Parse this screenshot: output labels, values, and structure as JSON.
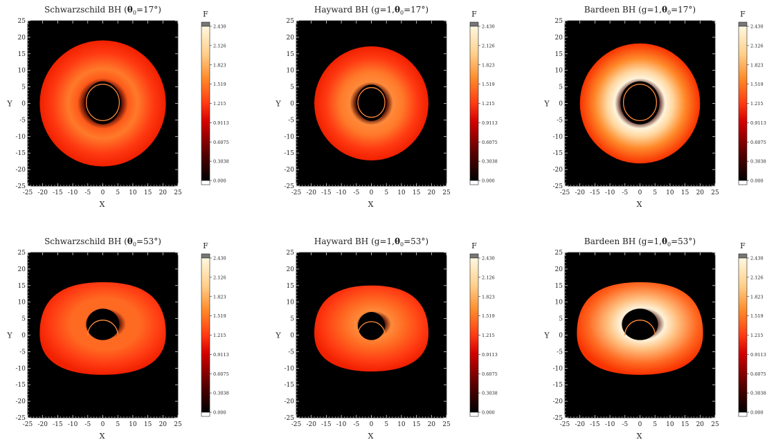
{
  "colorbar": {
    "label": "F",
    "ticks": [
      "2.430",
      "2.126",
      "1.823",
      "1.519",
      "1.215",
      "0.9113",
      "0.6075",
      "0.3038",
      "0.000"
    ]
  },
  "axes": {
    "xlabel": "X",
    "ylabel": "Y",
    "xticks": [
      "-25",
      "-20",
      "-15",
      "-10",
      "-5",
      "0",
      "5",
      "10",
      "15",
      "20",
      "25"
    ],
    "yticks": [
      "25",
      "20",
      "15",
      "10",
      "5",
      "0",
      "-5",
      "-10",
      "-15",
      "-20",
      "-25"
    ]
  },
  "panels": [
    {
      "title_pre": "Schwarzschild BH (",
      "title_post": "=17°)"
    },
    {
      "title_pre": "Hayward BH (g=1,",
      "title_post": "=17°)"
    },
    {
      "title_pre": "Bardeen BH (g=1,",
      "title_post": "=17°)"
    },
    {
      "title_pre": "Schwarzschild BH (",
      "title_post": "=53°)"
    },
    {
      "title_pre": "Hayward BH (g=1,",
      "title_post": "=53°)"
    },
    {
      "title_pre": "Bardeen BH (g=1,",
      "title_post": "=53°)"
    }
  ],
  "chart_data": [
    {
      "type": "heatmap",
      "title": "Schwarzschild BH (θ0=17°)",
      "xlabel": "X",
      "ylabel": "Y",
      "xlim": [
        -25,
        25
      ],
      "ylim": [
        -25,
        25
      ],
      "colorbar_label": "F",
      "clim": [
        0,
        2.43
      ],
      "disk": {
        "outer_radius": 21,
        "cx": -2,
        "cy": 0.5,
        "inner_radius_x": 6,
        "inner_radius_y": 6.5,
        "ring_radius": 5.5,
        "peak_flux": 1.25
      }
    },
    {
      "type": "heatmap",
      "title": "Hayward BH (g=1,θ0=17°)",
      "xlabel": "X",
      "ylabel": "Y",
      "xlim": [
        -25,
        25
      ],
      "ylim": [
        -25,
        25
      ],
      "colorbar_label": "F",
      "clim": [
        0,
        2.43
      ],
      "disk": {
        "outer_radius": 19,
        "cx": -0.5,
        "cy": 0.5,
        "inner_radius_x": 5,
        "inner_radius_y": 5.5,
        "ring_radius": 4.5,
        "peak_flux": 1.5
      }
    },
    {
      "type": "heatmap",
      "title": "Bardeen BH (g=1,θ0=17°)",
      "xlabel": "X",
      "ylabel": "Y",
      "xlim": [
        -25,
        25
      ],
      "ylim": [
        -25,
        25
      ],
      "colorbar_label": "F",
      "clim": [
        0,
        2.43
      ],
      "disk": {
        "outer_radius": 20,
        "cx": -0.5,
        "cy": 0.5,
        "inner_radius_x": 6.5,
        "inner_radius_y": 6.5,
        "ring_radius": 5.5,
        "peak_flux": 2.4
      }
    },
    {
      "type": "heatmap",
      "title": "Schwarzschild BH (θ0=53°)",
      "xlabel": "X",
      "ylabel": "Y",
      "xlim": [
        -25,
        25
      ],
      "ylim": [
        -25,
        25
      ],
      "colorbar_label": "F",
      "clim": [
        0,
        2.43
      ],
      "disk": {
        "outer_radius_x": 21,
        "outer_top": 16,
        "outer_bottom": -12,
        "inner_radius_x": 5.5,
        "inner_top": 8,
        "inner_bottom": -1.5,
        "ring_radius": 5,
        "peak_flux": 1.3
      }
    },
    {
      "type": "heatmap",
      "title": "Hayward BH (g=1,θ0=53°)",
      "xlabel": "X",
      "ylabel": "Y",
      "xlim": [
        -25,
        25
      ],
      "ylim": [
        -25,
        25
      ],
      "colorbar_label": "F",
      "clim": [
        0,
        2.43
      ],
      "disk": {
        "outer_radius_x": 19,
        "outer_top": 15,
        "outer_bottom": -11,
        "inner_radius_x": 4.5,
        "inner_top": 7,
        "inner_bottom": -1.5,
        "ring_radius": 4.5,
        "peak_flux": 1.6
      }
    },
    {
      "type": "heatmap",
      "title": "Bardeen BH (g=1,θ0=53°)",
      "xlabel": "X",
      "ylabel": "Y",
      "xlim": [
        -25,
        25
      ],
      "ylim": [
        -25,
        25
      ],
      "colorbar_label": "F",
      "clim": [
        0,
        2.43
      ],
      "disk": {
        "outer_radius_x": 21,
        "outer_top": 16,
        "outer_bottom": -12,
        "inner_radius_x": 6,
        "inner_top": 8,
        "inner_bottom": -1.5,
        "ring_radius": 5,
        "peak_flux": 2.4
      }
    }
  ]
}
